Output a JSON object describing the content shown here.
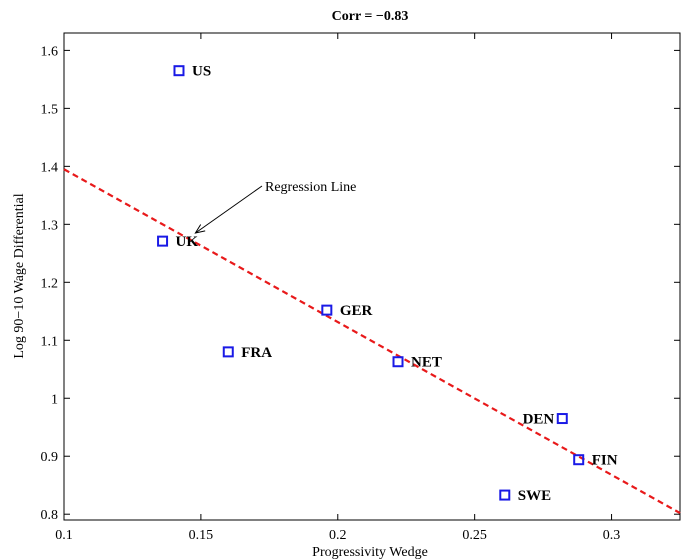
{
  "chart_data": {
    "type": "scatter",
    "title": "Corr = −0.83",
    "xlabel": "Progressivity Wedge",
    "ylabel": "Log 90−10 Wage Differential",
    "xlim": [
      0.1,
      0.325
    ],
    "ylim": [
      0.79,
      1.63
    ],
    "xticks": [
      0.1,
      0.15,
      0.2,
      0.25,
      0.3
    ],
    "xtick_labels": [
      "0.1",
      "0.15",
      "0.2",
      "0.25",
      "0.3"
    ],
    "yticks": [
      0.8,
      0.9,
      1.0,
      1.1,
      1.2,
      1.3,
      1.4,
      1.5,
      1.6
    ],
    "ytick_labels": [
      "0.8",
      "0.9",
      "1",
      "1.1",
      "1.2",
      "1.3",
      "1.4",
      "1.5",
      "1.6"
    ],
    "grid": false,
    "points": [
      {
        "label": "US",
        "x": 0.142,
        "y": 1.565,
        "label_side": "right"
      },
      {
        "label": "UK",
        "x": 0.136,
        "y": 1.271,
        "label_side": "right"
      },
      {
        "label": "GER",
        "x": 0.196,
        "y": 1.152,
        "label_side": "right"
      },
      {
        "label": "FRA",
        "x": 0.16,
        "y": 1.08,
        "label_side": "right"
      },
      {
        "label": "NET",
        "x": 0.222,
        "y": 1.063,
        "label_side": "right"
      },
      {
        "label": "DEN",
        "x": 0.282,
        "y": 0.965,
        "label_side": "left"
      },
      {
        "label": "FIN",
        "x": 0.288,
        "y": 0.894,
        "label_side": "right"
      },
      {
        "label": "SWE",
        "x": 0.261,
        "y": 0.833,
        "label_side": "right"
      }
    ],
    "regression_line": {
      "x": [
        0.1,
        0.325
      ],
      "y": [
        1.395,
        0.802
      ],
      "style": "dashed",
      "color": "#e8191a"
    },
    "annotation": {
      "text": "Regression Line",
      "target_x": 0.148,
      "target_y": 1.285
    },
    "marker_color": "#1a1ae6"
  }
}
